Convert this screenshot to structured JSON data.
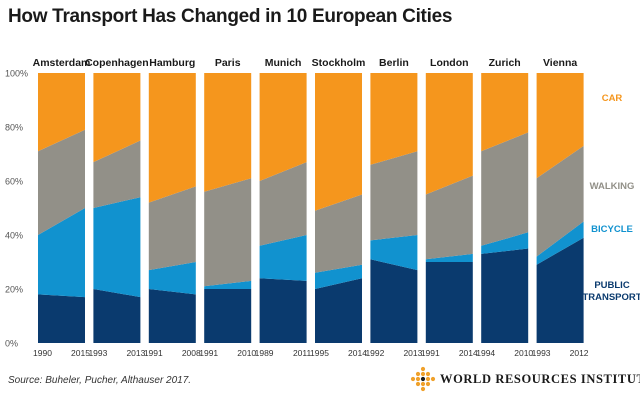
{
  "header": {
    "title": "How Transport Has Changed in 10 European Cities"
  },
  "source": "Source: Buheler, Pucher, Althauser 2017.",
  "logo": {
    "text": "WORLD RESOURCES INSTITUTE",
    "icon": "wri-logo-icon"
  },
  "colors": {
    "car": "#f5961d",
    "walking": "#929088",
    "bicycle": "#1192cf",
    "public_transport": "#0a3a6e"
  },
  "chart_data": {
    "type": "area",
    "title": "How Transport Has Changed in 10 European Cities",
    "xlabel": "",
    "ylabel": "",
    "ylim": [
      0,
      100
    ],
    "y_ticks": [
      "0%",
      "20%",
      "40%",
      "60%",
      "80%",
      "100%"
    ],
    "stacked": true,
    "grid": false,
    "legend_placement": "right",
    "series_order": [
      "Public Transport",
      "Bicycle",
      "Walking",
      "Car"
    ],
    "legend": [
      {
        "name": "CAR",
        "key": "car"
      },
      {
        "name": "WALKING",
        "key": "walking"
      },
      {
        "name": "BICYCLE",
        "key": "bicycle"
      },
      {
        "name": "PUBLIC TRANSPORT",
        "key": "public_transport"
      }
    ],
    "cities": [
      {
        "name": "Amsterdam",
        "years": [
          "1990",
          "2015"
        ],
        "public_transport": [
          18,
          17
        ],
        "bicycle": [
          22,
          33
        ],
        "walking": [
          31,
          29
        ],
        "car": [
          29,
          21
        ]
      },
      {
        "name": "Copenhagen",
        "years": [
          "1993",
          "2013"
        ],
        "public_transport": [
          20,
          17
        ],
        "bicycle": [
          30,
          37
        ],
        "walking": [
          17,
          21
        ],
        "car": [
          33,
          25
        ]
      },
      {
        "name": "Hamburg",
        "years": [
          "1991",
          "2008"
        ],
        "public_transport": [
          20,
          18
        ],
        "bicycle": [
          7,
          12
        ],
        "walking": [
          25,
          28
        ],
        "car": [
          48,
          42
        ]
      },
      {
        "name": "Paris",
        "years": [
          "1991",
          "2010"
        ],
        "public_transport": [
          20,
          20
        ],
        "bicycle": [
          1,
          3
        ],
        "walking": [
          35,
          38
        ],
        "car": [
          44,
          39
        ]
      },
      {
        "name": "Munich",
        "years": [
          "1989",
          "2011"
        ],
        "public_transport": [
          24,
          23
        ],
        "bicycle": [
          12,
          17
        ],
        "walking": [
          24,
          27
        ],
        "car": [
          40,
          33
        ]
      },
      {
        "name": "Stockholm",
        "years": [
          "1995",
          "2014"
        ],
        "public_transport": [
          20,
          24
        ],
        "bicycle": [
          6,
          5
        ],
        "walking": [
          23,
          26
        ],
        "car": [
          51,
          45
        ]
      },
      {
        "name": "Berlin",
        "years": [
          "1992",
          "2013"
        ],
        "public_transport": [
          31,
          27
        ],
        "bicycle": [
          7,
          13
        ],
        "walking": [
          28,
          31
        ],
        "car": [
          34,
          29
        ]
      },
      {
        "name": "London",
        "years": [
          "1991",
          "2014"
        ],
        "public_transport": [
          30,
          30
        ],
        "bicycle": [
          1,
          3
        ],
        "walking": [
          24,
          29
        ],
        "car": [
          45,
          38
        ]
      },
      {
        "name": "Zurich",
        "years": [
          "1994",
          "2010"
        ],
        "public_transport": [
          33,
          35
        ],
        "bicycle": [
          3,
          6
        ],
        "walking": [
          35,
          37
        ],
        "car": [
          29,
          22
        ]
      },
      {
        "name": "Vienna",
        "years": [
          "1993",
          "2012"
        ],
        "public_transport": [
          29,
          39
        ],
        "bicycle": [
          3,
          6
        ],
        "walking": [
          29,
          28
        ],
        "car": [
          39,
          27
        ]
      }
    ]
  }
}
